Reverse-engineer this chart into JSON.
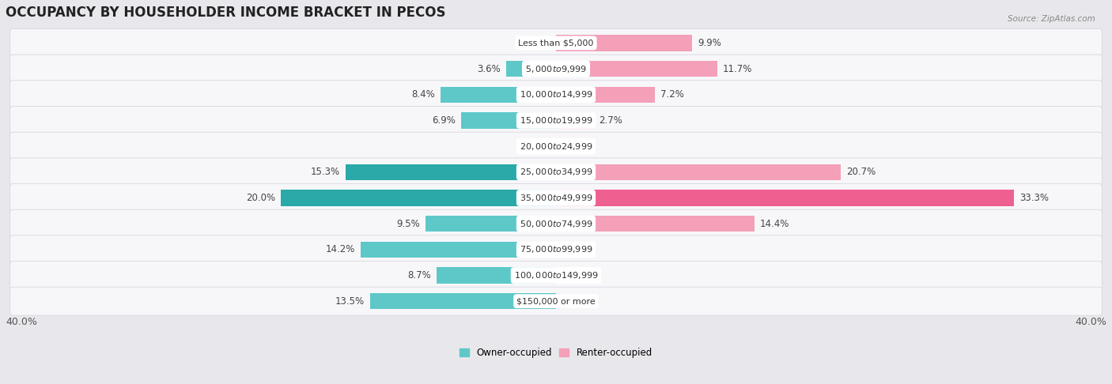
{
  "title": "OCCUPANCY BY HOUSEHOLDER INCOME BRACKET IN PECOS",
  "source": "Source: ZipAtlas.com",
  "categories": [
    "Less than $5,000",
    "$5,000 to $9,999",
    "$10,000 to $14,999",
    "$15,000 to $19,999",
    "$20,000 to $24,999",
    "$25,000 to $34,999",
    "$35,000 to $49,999",
    "$50,000 to $74,999",
    "$75,000 to $99,999",
    "$100,000 to $149,999",
    "$150,000 or more"
  ],
  "owner_values": [
    0.0,
    3.6,
    8.4,
    6.9,
    0.0,
    15.3,
    20.0,
    9.5,
    14.2,
    8.7,
    13.5
  ],
  "renter_values": [
    9.9,
    11.7,
    7.2,
    2.7,
    0.0,
    20.7,
    33.3,
    14.4,
    0.0,
    0.0,
    0.0
  ],
  "owner_color_light": "#5EC8C8",
  "owner_color_dark": "#2BA8A8",
  "renter_color_light": "#F4A0B8",
  "renter_color_dark": "#EE6090",
  "owner_label": "Owner-occupied",
  "renter_label": "Renter-occupied",
  "xlim": 40.0,
  "bar_height": 0.62,
  "outer_bg": "#E8E8EC",
  "row_bg": "#F7F7FA",
  "title_fontsize": 12,
  "label_fontsize": 8.5,
  "category_fontsize": 8,
  "axis_fontsize": 9,
  "show_zero_labels": [
    true,
    false,
    false,
    false,
    true,
    false,
    false,
    false,
    true,
    true,
    true
  ]
}
